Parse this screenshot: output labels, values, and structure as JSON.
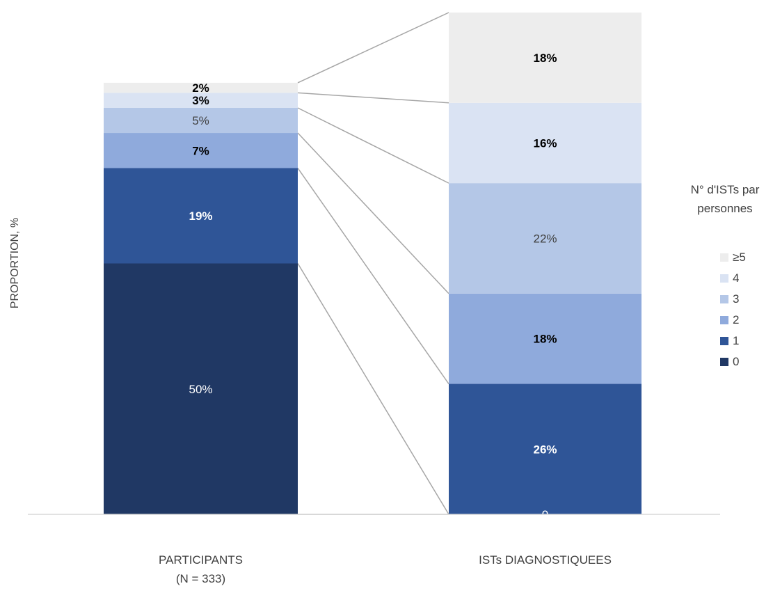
{
  "chart_data": {
    "type": "bar",
    "stacked": true,
    "ylabel": "PROPORTION, %",
    "ylim": [
      0,
      100
    ],
    "categories": [
      [
        "PARTICIPANTS",
        "(N = 333)"
      ],
      [
        "ISTs DIAGNOSTIQUEES"
      ]
    ],
    "legend": {
      "title": [
        "N° d'ISTs par",
        "personnes"
      ],
      "position": "right"
    },
    "series": [
      {
        "name": "0",
        "color": "#203864",
        "values": [
          50,
          0
        ],
        "labels": [
          "50%",
          "0"
        ],
        "bold": [
          false,
          false
        ]
      },
      {
        "name": "1",
        "color": "#2f5597",
        "values": [
          19,
          26
        ],
        "labels": [
          "19%",
          "26%"
        ],
        "bold": [
          true,
          true
        ]
      },
      {
        "name": "2",
        "color": "#8faadc",
        "values": [
          7,
          18
        ],
        "labels": [
          "7%",
          "18%"
        ],
        "bold": [
          true,
          true
        ]
      },
      {
        "name": "3",
        "color": "#b4c7e7",
        "values": [
          5,
          22
        ],
        "labels": [
          "5%",
          "22%"
        ],
        "bold": [
          false,
          false
        ]
      },
      {
        "name": "4",
        "color": "#dae3f3",
        "values": [
          3,
          16
        ],
        "labels": [
          "3%",
          "16%"
        ],
        "bold": [
          true,
          true
        ]
      },
      {
        "name": "≥5",
        "color": "#ededed",
        "values": [
          2,
          18
        ],
        "labels": [
          "2%",
          "18%"
        ],
        "bold": [
          true,
          true
        ]
      }
    ],
    "series_lines": true,
    "grid": false
  }
}
